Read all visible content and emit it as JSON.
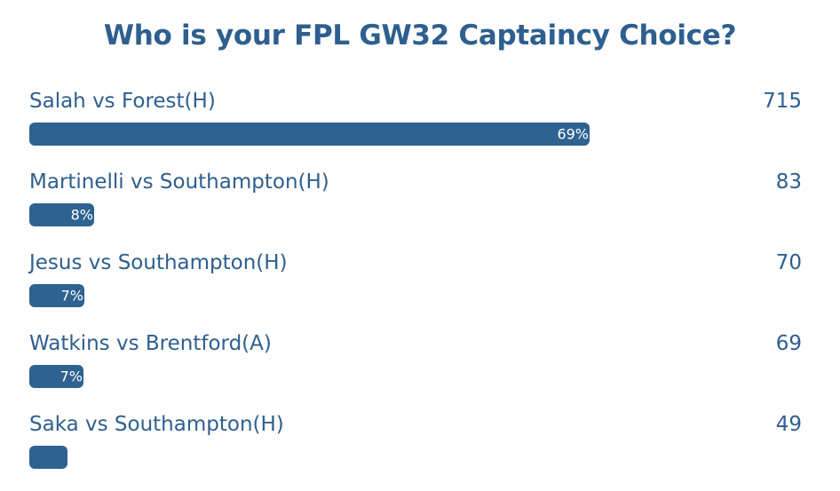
{
  "title": "Who is your FPL GW32 Captaincy Choice?",
  "chart_data": {
    "type": "bar",
    "orientation": "horizontal",
    "title": "Who is your FPL GW32 Captaincy Choice?",
    "categories": [
      "Salah vs Forest(H)",
      "Martinelli vs Southampton(H)",
      "Jesus vs Southampton(H)",
      "Watkins vs Brentford(A)",
      "Saka vs Southampton(H)"
    ],
    "values": [
      715,
      83,
      70,
      69,
      49
    ],
    "percent_labels": [
      "69%",
      "8%",
      "7%",
      "7%",
      ""
    ],
    "bar_color": "#2e6290"
  },
  "options": [
    {
      "label": "Salah vs Forest(H)",
      "count": "715",
      "percent": "69%"
    },
    {
      "label": "Martinelli vs Southampton(H)",
      "count": "83",
      "percent": "8%"
    },
    {
      "label": "Jesus vs Southampton(H)",
      "count": "70",
      "percent": "7%"
    },
    {
      "label": "Watkins vs Brentford(A)",
      "count": "69",
      "percent": "7%"
    },
    {
      "label": "Saka vs Southampton(H)",
      "count": "49",
      "percent": ""
    }
  ]
}
